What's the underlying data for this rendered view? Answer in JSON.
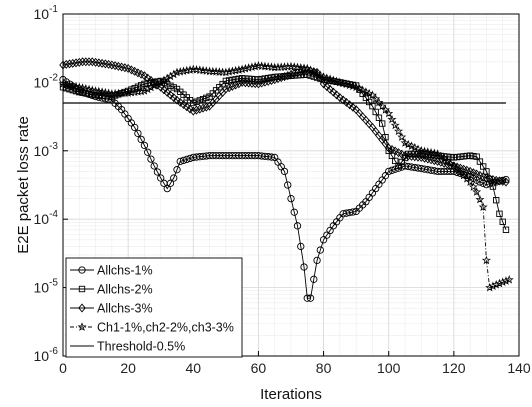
{
  "chart_data": {
    "type": "line",
    "title": "",
    "xlabel": "Iterations",
    "ylabel": "E2E packet loss rate",
    "xlim": [
      0,
      140
    ],
    "ylim": [
      1e-06,
      0.1
    ],
    "yscale": "log",
    "grid": true,
    "legend_position": "bottom-left",
    "x_ticks": [
      "0",
      "20",
      "40",
      "60",
      "80",
      "100",
      "120",
      "140"
    ],
    "y_ticks": [
      {
        "base": "10",
        "exp": "-6"
      },
      {
        "base": "10",
        "exp": "-5"
      },
      {
        "base": "10",
        "exp": "-4"
      },
      {
        "base": "10",
        "exp": "-3"
      },
      {
        "base": "10",
        "exp": "-2"
      },
      {
        "base": "10",
        "exp": "-1"
      }
    ],
    "series": [
      {
        "name": "Allchs-1%",
        "marker": "circle",
        "dash": "solid",
        "x": [
          0,
          5,
          10,
          15,
          18,
          22,
          25,
          28,
          30,
          32,
          34,
          36,
          40,
          45,
          50,
          55,
          60,
          65,
          68,
          70,
          72,
          74,
          75,
          76,
          78,
          80,
          83,
          86,
          90,
          93,
          96,
          100,
          105,
          110,
          115,
          120,
          125,
          128,
          130,
          132,
          134,
          136
        ],
        "y": [
          0.011,
          0.0075,
          0.0062,
          0.0055,
          0.004,
          0.0022,
          0.0012,
          0.0006,
          0.0004,
          0.00028,
          0.0004,
          0.0007,
          0.0008,
          0.00085,
          0.00085,
          0.00085,
          0.00085,
          0.0008,
          0.0005,
          0.0002,
          8e-05,
          2e-05,
          7e-06,
          7e-06,
          2.5e-05,
          5e-05,
          8e-05,
          0.00012,
          0.00013,
          0.00018,
          0.00028,
          0.0005,
          0.0006,
          0.00055,
          0.0005,
          0.0005,
          0.00042,
          0.00035,
          0.00032,
          0.00034,
          0.00036,
          0.00038
        ]
      },
      {
        "name": "Allchs-2%",
        "marker": "square",
        "dash": "solid",
        "x": [
          0,
          5,
          10,
          15,
          20,
          25,
          30,
          35,
          40,
          45,
          50,
          55,
          60,
          65,
          70,
          75,
          80,
          85,
          90,
          95,
          98,
          100,
          103,
          106,
          110,
          115,
          120,
          125,
          127,
          130,
          132,
          134,
          136
        ],
        "y": [
          0.0085,
          0.0072,
          0.0065,
          0.0062,
          0.0075,
          0.0095,
          0.0105,
          0.008,
          0.005,
          0.0062,
          0.0105,
          0.0115,
          0.011,
          0.012,
          0.0125,
          0.013,
          0.011,
          0.01,
          0.009,
          0.0045,
          0.0025,
          0.001,
          0.0006,
          0.0009,
          0.0009,
          0.00085,
          0.0008,
          0.00085,
          0.00082,
          0.0005,
          0.0003,
          0.00012,
          7e-05
        ]
      },
      {
        "name": "Allchs-3%",
        "marker": "diamond",
        "dash": "solid",
        "x": [
          0,
          3,
          6,
          9,
          12,
          15,
          20,
          25,
          30,
          35,
          40,
          45,
          50,
          55,
          60,
          65,
          70,
          75,
          78,
          80,
          85,
          90,
          95,
          100,
          105,
          110,
          115,
          120,
          125,
          130,
          133,
          136
        ],
        "y": [
          0.018,
          0.019,
          0.02,
          0.02,
          0.019,
          0.018,
          0.016,
          0.0125,
          0.0085,
          0.0055,
          0.0038,
          0.0045,
          0.008,
          0.01,
          0.0095,
          0.011,
          0.013,
          0.015,
          0.014,
          0.0095,
          0.006,
          0.004,
          0.0022,
          0.0011,
          0.00085,
          0.0008,
          0.0007,
          0.0006,
          0.0005,
          0.0004,
          0.00037,
          0.00035
        ]
      },
      {
        "name": "Ch1-1%,ch2-2%,ch3-3%",
        "marker": "star",
        "dash": "dashdot",
        "x": [
          0,
          5,
          10,
          15,
          20,
          25,
          30,
          35,
          40,
          45,
          50,
          55,
          60,
          65,
          70,
          75,
          80,
          85,
          90,
          95,
          100,
          105,
          110,
          115,
          120,
          125,
          127,
          129,
          130,
          131,
          133,
          135,
          137
        ],
        "y": [
          0.0095,
          0.0085,
          0.0075,
          0.0068,
          0.007,
          0.0075,
          0.01,
          0.014,
          0.0155,
          0.0145,
          0.014,
          0.0155,
          0.0175,
          0.0165,
          0.017,
          0.016,
          0.012,
          0.01,
          0.0085,
          0.0065,
          0.0035,
          0.0013,
          0.001,
          0.0009,
          0.0006,
          0.00035,
          0.00025,
          0.00015,
          2.5e-05,
          1e-05,
          1.1e-05,
          1.2e-05,
          1.3e-05
        ]
      },
      {
        "name": "Threshold-0.5%",
        "marker": "none",
        "dash": "solid",
        "x": [
          0,
          136
        ],
        "y": [
          0.005,
          0.005
        ]
      }
    ]
  }
}
